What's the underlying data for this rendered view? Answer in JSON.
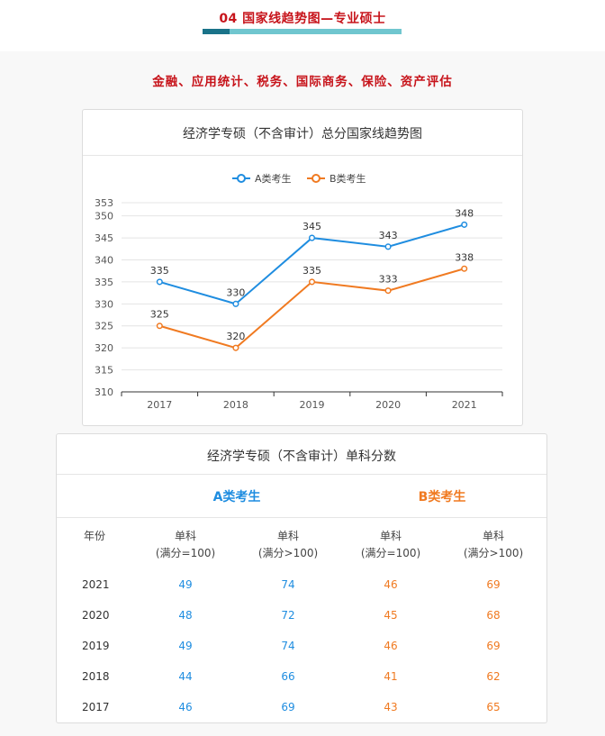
{
  "header": {
    "title": "04   国家线趋势图—专业硕士"
  },
  "subjects_line": "金融、应用统计、税务、国际商务、保险、资产评估",
  "chart_data": {
    "type": "line",
    "title": "经济学专硕（不含审计）总分国家线趋势图",
    "categories": [
      "2017",
      "2018",
      "2019",
      "2020",
      "2021"
    ],
    "series": [
      {
        "name": "A类考生",
        "values": [
          335,
          330,
          345,
          343,
          348
        ],
        "color": "#1f8de0"
      },
      {
        "name": "B类考生",
        "values": [
          325,
          320,
          335,
          333,
          338
        ],
        "color": "#f07a21"
      }
    ],
    "yticks": [
      310,
      315,
      320,
      325,
      330,
      335,
      340,
      345,
      350,
      353
    ],
    "ylim": [
      310,
      353
    ],
    "legend": "top-center",
    "grid": true
  },
  "table": {
    "title": "经济学专硕（不含审计）单科分数",
    "group_a": "A类考生",
    "group_b": "B类考生",
    "year_header": "年份",
    "col_headers": [
      {
        "line1": "单科",
        "line2": "(满分=100)"
      },
      {
        "line1": "单科",
        "line2": "(满分>100)"
      },
      {
        "line1": "单科",
        "line2": "(满分=100)"
      },
      {
        "line1": "单科",
        "line2": "(满分>100)"
      }
    ],
    "rows": [
      {
        "year": "2021",
        "a1": "49",
        "a2": "74",
        "b1": "46",
        "b2": "69"
      },
      {
        "year": "2020",
        "a1": "48",
        "a2": "72",
        "b1": "45",
        "b2": "68"
      },
      {
        "year": "2019",
        "a1": "49",
        "a2": "74",
        "b1": "46",
        "b2": "69"
      },
      {
        "year": "2018",
        "a1": "44",
        "a2": "66",
        "b1": "41",
        "b2": "62"
      },
      {
        "year": "2017",
        "a1": "46",
        "a2": "69",
        "b1": "43",
        "b2": "65"
      }
    ]
  }
}
